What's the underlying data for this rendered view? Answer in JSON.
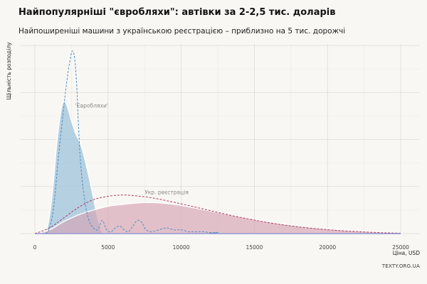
{
  "header": {
    "title": "Найпопулярніші \"євробляхи\": автівки за 2-2,5 тис. доларів",
    "subtitle": "Найпоширеніші машини з українською реєстрацією – приблизно на 5 тис. дорожчі"
  },
  "footer": {
    "source": "TEXTY.ORG.UA"
  },
  "chart_data": {
    "type": "area",
    "title": "Найпопулярніші \"євробляхи\": автівки за 2-2,5 тис. доларів",
    "subtitle": "Найпоширеніші машини з українською реєстрацією – приблизно на 5 тис. дорожчі",
    "xlabel": "Ціна, USD",
    "ylabel": "Щільність розподілу",
    "xlim": [
      -1500,
      26000
    ],
    "ylim": [
      0,
      1.0
    ],
    "x_ticks": [
      0,
      5000,
      10000,
      15000,
      20000,
      25000
    ],
    "x_tick_labels": [
      "0",
      "5000",
      "10000",
      "15000",
      "20000",
      "25000"
    ],
    "grid": true,
    "legend": "none",
    "annotations": [
      {
        "text": "'Євробляхи'",
        "x": 2750,
        "y": 0.67
      },
      {
        "text": "Укр. реєстрація",
        "x": 7500,
        "y": 0.21
      }
    ],
    "series": [
      {
        "name": "'Євробляхи'",
        "style": "filled",
        "color": "#9dc3db",
        "x": [
          0,
          600,
          900,
          1200,
          1500,
          1800,
          2000,
          2200,
          2500,
          2800,
          3100,
          3400,
          3700,
          4000,
          4300,
          4600,
          4800,
          5000
        ],
        "y": [
          0,
          0,
          0.05,
          0.22,
          0.48,
          0.66,
          0.7,
          0.68,
          0.6,
          0.53,
          0.48,
          0.4,
          0.3,
          0.19,
          0.08,
          0.01,
          0,
          0
        ]
      },
      {
        "name": "'Євробляхи'",
        "style": "dashed",
        "color": "#4a90c2",
        "x": [
          0,
          700,
          1000,
          1300,
          1600,
          1900,
          2200,
          2400,
          2550,
          2700,
          2850,
          3100,
          3400,
          3700,
          4000,
          4300,
          4600,
          4900,
          5200,
          5500,
          5800,
          6100,
          6400,
          6700,
          7000,
          7300,
          7600,
          8000,
          8500,
          9000,
          9500,
          10000,
          10500,
          11000,
          11500,
          12000,
          12500,
          13000,
          25000
        ],
        "y": [
          0,
          0,
          0.03,
          0.15,
          0.4,
          0.62,
          0.82,
          0.92,
          0.97,
          0.94,
          0.8,
          0.4,
          0.18,
          0.07,
          0.03,
          0.02,
          0.07,
          0.02,
          0.01,
          0.03,
          0.04,
          0.02,
          0.01,
          0.04,
          0.07,
          0.06,
          0.02,
          0.01,
          0.02,
          0.03,
          0.02,
          0.02,
          0.01,
          0.01,
          0.01,
          0.005,
          0.005,
          0,
          0
        ]
      },
      {
        "name": "Укр. реєстрація",
        "style": "filled",
        "color": "#d6a3b4",
        "x": [
          0,
          1000,
          2000,
          3000,
          4000,
          5000,
          6000,
          7000,
          8000,
          9000,
          10000,
          11000,
          12000,
          13000,
          14000,
          15000,
          16000,
          17000,
          18000,
          19000,
          20000,
          21000,
          22000,
          23000,
          24000,
          25000
        ],
        "y": [
          0,
          0.02,
          0.065,
          0.1,
          0.125,
          0.145,
          0.155,
          0.163,
          0.165,
          0.16,
          0.15,
          0.135,
          0.12,
          0.105,
          0.09,
          0.075,
          0.062,
          0.05,
          0.04,
          0.032,
          0.025,
          0.019,
          0.014,
          0.009,
          0.005,
          0.002
        ]
      },
      {
        "name": "Укр. реєстрація",
        "style": "dashed",
        "color": "#a83a62",
        "x": [
          0,
          1000,
          2000,
          3000,
          4000,
          5000,
          6000,
          7000,
          8000,
          9000,
          10000,
          11000,
          12000,
          13000,
          14000,
          15000,
          16000,
          17000,
          18000,
          19000,
          20000,
          21000,
          22000,
          23000,
          24000,
          25000
        ],
        "y": [
          0,
          0.03,
          0.085,
          0.14,
          0.18,
          0.198,
          0.205,
          0.2,
          0.19,
          0.175,
          0.158,
          0.14,
          0.122,
          0.104,
          0.087,
          0.072,
          0.058,
          0.046,
          0.036,
          0.028,
          0.021,
          0.015,
          0.011,
          0.007,
          0.004,
          0.002
        ]
      }
    ]
  }
}
